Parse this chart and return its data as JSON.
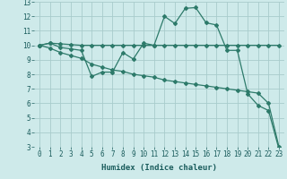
{
  "xlabel": "Humidex (Indice chaleur)",
  "bg_color": "#ceeaea",
  "grid_color": "#a8cccc",
  "line_color": "#2d7a6a",
  "xlim": [
    -0.5,
    23.5
  ],
  "ylim": [
    3,
    13
  ],
  "xticks": [
    0,
    1,
    2,
    3,
    4,
    5,
    6,
    7,
    8,
    9,
    10,
    11,
    12,
    13,
    14,
    15,
    16,
    17,
    18,
    19,
    20,
    21,
    22,
    23
  ],
  "yticks": [
    3,
    4,
    5,
    6,
    7,
    8,
    9,
    10,
    11,
    12,
    13
  ],
  "series1_x": [
    0,
    1,
    2,
    3,
    4,
    5,
    6,
    7,
    8,
    9,
    10,
    11,
    12,
    13,
    14,
    15,
    16,
    17,
    18,
    19,
    20,
    21,
    22,
    23
  ],
  "series1_y": [
    10.0,
    10.15,
    10.1,
    10.05,
    10.0,
    10.0,
    10.0,
    10.0,
    10.0,
    10.0,
    10.0,
    10.0,
    10.0,
    10.0,
    10.0,
    10.0,
    10.0,
    10.0,
    10.0,
    10.0,
    10.0,
    10.0,
    10.0,
    10.0
  ],
  "series2_x": [
    0,
    1,
    2,
    3,
    4,
    5,
    6,
    7,
    8,
    9,
    10,
    11,
    12,
    13,
    14,
    15,
    16,
    17,
    18,
    19,
    20,
    21,
    22,
    23
  ],
  "series2_y": [
    10.0,
    10.15,
    9.85,
    9.75,
    9.65,
    7.85,
    8.15,
    8.15,
    9.5,
    9.05,
    10.15,
    10.0,
    12.0,
    11.5,
    12.55,
    12.6,
    11.55,
    11.4,
    9.65,
    9.65,
    6.65,
    5.85,
    5.5,
    2.85
  ],
  "series3_x": [
    0,
    1,
    2,
    3,
    4,
    5,
    6,
    7,
    8,
    9,
    10,
    11,
    12,
    13,
    14,
    15,
    16,
    17,
    18,
    19,
    20,
    21,
    22,
    23
  ],
  "series3_y": [
    10.0,
    9.8,
    9.5,
    9.3,
    9.1,
    8.7,
    8.5,
    8.3,
    8.2,
    8.0,
    7.9,
    7.8,
    7.6,
    7.5,
    7.4,
    7.3,
    7.2,
    7.1,
    7.0,
    6.9,
    6.8,
    6.7,
    6.0,
    3.0
  ]
}
